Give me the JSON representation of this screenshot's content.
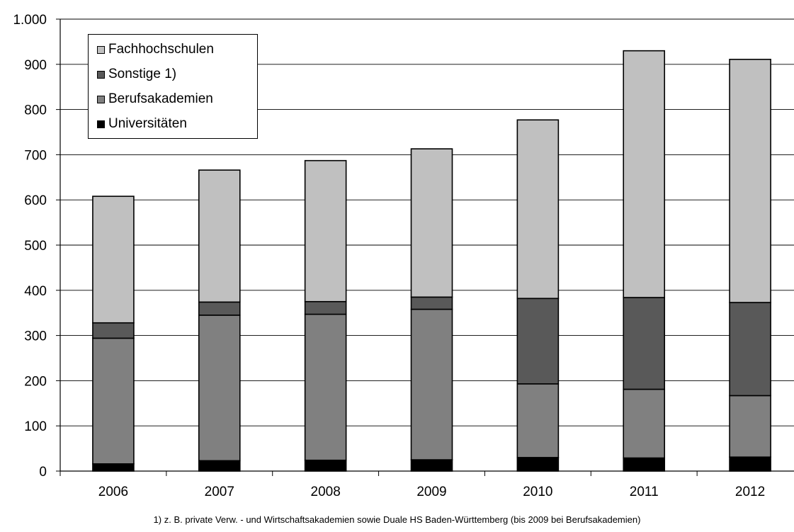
{
  "chart_data": {
    "type": "bar",
    "stacked": true,
    "categories": [
      "2006",
      "2007",
      "2008",
      "2009",
      "2010",
      "2011",
      "2012"
    ],
    "series": [
      {
        "name": "Universitäten",
        "color": "#000000",
        "values": [
          16,
          23,
          24,
          25,
          30,
          29,
          31
        ]
      },
      {
        "name": "Berufsakademien",
        "color": "#808080",
        "values": [
          278,
          322,
          323,
          333,
          163,
          152,
          136
        ]
      },
      {
        "name": "Sonstige 1)",
        "color": "#595959",
        "values": [
          34,
          29,
          28,
          27,
          189,
          203,
          206
        ]
      },
      {
        "name": "Fachhochschulen",
        "color": "#c0c0c0",
        "values": [
          280,
          292,
          312,
          328,
          395,
          546,
          538
        ]
      }
    ],
    "ylim": [
      0,
      1000
    ],
    "yticks": [
      0,
      100,
      200,
      300,
      400,
      500,
      600,
      700,
      800,
      900,
      1000
    ],
    "ytick_labels": [
      "0",
      "100",
      "200",
      "300",
      "400",
      "500",
      "600",
      "700",
      "800",
      "900",
      "1.000"
    ],
    "grid": true,
    "legend_position": "top-left",
    "legend_order": [
      "Fachhochschulen",
      "Sonstige 1)",
      "Berufsakademien",
      "Universitäten"
    ],
    "footnote": "1) z. B. private Verw. - und Wirtschaftsakademien sowie Duale HS Baden-Württemberg  (bis 2009 bei Berufsakademien)"
  }
}
